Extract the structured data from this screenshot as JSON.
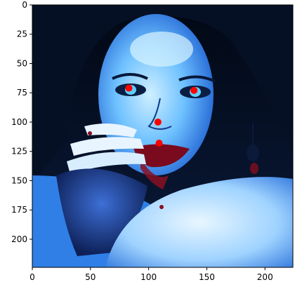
{
  "chart_data": {
    "type": "scatter",
    "title": "",
    "xlabel": "",
    "ylabel": "",
    "image_background": "face-photo-with-landmarks",
    "xlim": [
      0,
      224
    ],
    "ylim": [
      224,
      0
    ],
    "x_ticks": [
      0,
      50,
      100,
      150,
      200
    ],
    "y_ticks": [
      0,
      25,
      50,
      75,
      100,
      125,
      150,
      175,
      200
    ],
    "points": [
      {
        "x": 83,
        "y": 71
      },
      {
        "x": 139,
        "y": 73
      },
      {
        "x": 108,
        "y": 100
      },
      {
        "x": 109,
        "y": 118
      }
    ],
    "marker_color": "#ff0000",
    "grid": false,
    "legend": "none"
  }
}
